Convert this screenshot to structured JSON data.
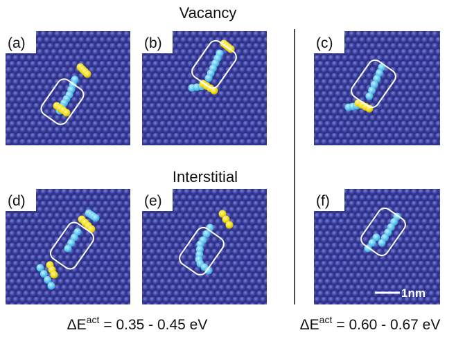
{
  "headings": {
    "top": "Vacancy",
    "middle": "Interstitial"
  },
  "panels": [
    {
      "label": "(a)"
    },
    {
      "label": "(b)"
    },
    {
      "label": "(c)"
    },
    {
      "label": "(d)"
    },
    {
      "label": "(e)"
    },
    {
      "label": "(f)"
    }
  ],
  "scale_bar": "1nm",
  "captions": [
    {
      "symbol": "ΔE",
      "superscript": "act",
      "text": "= 0.35 - 0.45 eV"
    },
    {
      "symbol": "ΔE",
      "superscript": "act",
      "text": "= 0.60 - 0.67 eV"
    }
  ]
}
